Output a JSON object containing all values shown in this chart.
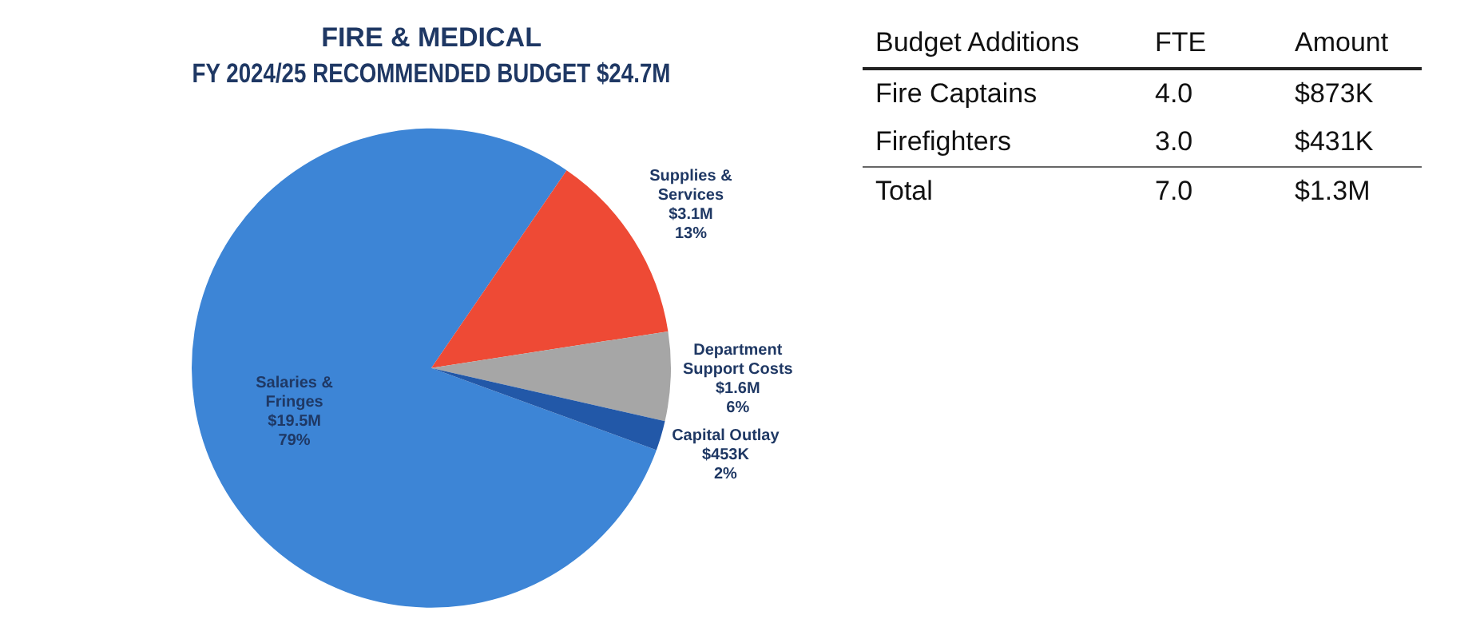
{
  "chart_data": [
    {
      "type": "pie",
      "title": "FIRE & MEDICAL",
      "subtitle": "FY 2024/25 RECOMMENDED BUDGET $24.7M",
      "categories": [
        "Salaries & Fringes",
        "Supplies & Services",
        "Department Support Costs",
        "Capital Outlay"
      ],
      "values": [
        79,
        13,
        6,
        2
      ],
      "value_labels": [
        "$19.5M 79%",
        "$3.1M 13%",
        "$1.6M 6%",
        "$453K 2%"
      ],
      "colors": [
        "#3d85d6",
        "#ee4a35",
        "#a6a6a6",
        "#2258a8"
      ],
      "legend": false
    },
    {
      "type": "other",
      "annotations": [
        "Budget Additions",
        "FTE",
        "Amount",
        "Fire Captains",
        "4.0",
        "$873K",
        "Firefighters",
        "3.0",
        "$431K",
        "Total",
        "7.0",
        "$1.3M"
      ]
    }
  ]
}
